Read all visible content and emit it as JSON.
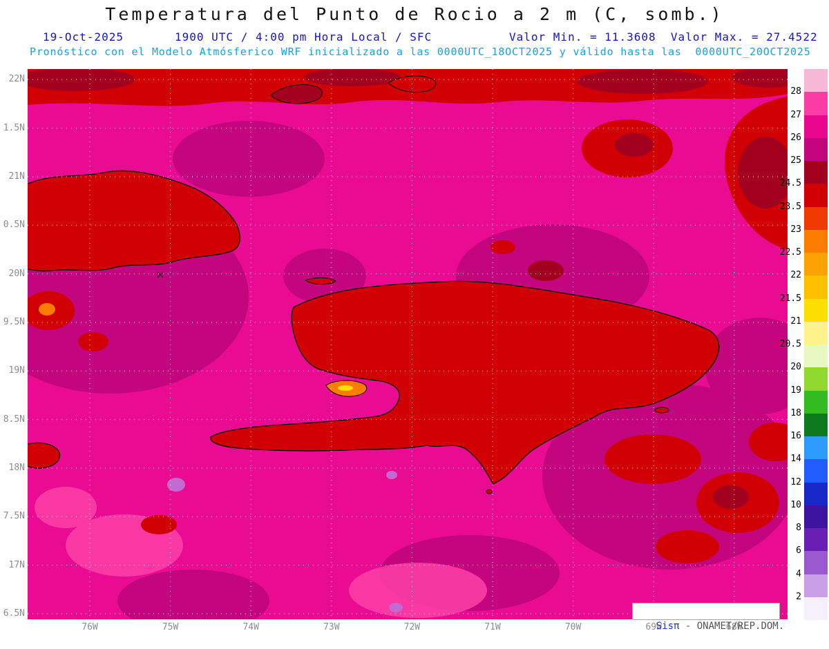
{
  "header": {
    "title": "Temperatura del Punto de Rocio a 2 m (C, somb.)",
    "date": "19-Oct-2025",
    "time": "1900 UTC / 4:00 pm Hora Local / SFC",
    "minmax": "Valor Min. = 11.3608  Valor Max. = 27.4522",
    "min_value": 11.3608,
    "max_value": 27.4522,
    "forecast_line": "Pronóstico con el Modelo Atmósferico WRF inicializado a las 0000UTC_18OCT2025 y válido hasta las  0000UTC_20OCT2025"
  },
  "axes": {
    "lat_labels": [
      "22N",
      "1.5N",
      "21N",
      "0.5N",
      "20N",
      "9.5N",
      "19N",
      "8.5N",
      "18N",
      "7.5N",
      "17N",
      "6.5N"
    ],
    "lon_labels": [
      "76W",
      "75W",
      "74W",
      "73W",
      "72W",
      "71W",
      "70W",
      "69W",
      "68W"
    ]
  },
  "colorbar": {
    "segments": [
      {
        "color": "#f8b8d8",
        "label": "28"
      },
      {
        "color": "#fb3da5",
        "label": "27"
      },
      {
        "color": "#e90790",
        "label": "26"
      },
      {
        "color": "#c4067e",
        "label": "25"
      },
      {
        "color": "#a30020",
        "label": "24.5"
      },
      {
        "color": "#d10005",
        "label": "23.5"
      },
      {
        "color": "#ef3b00",
        "label": "23"
      },
      {
        "color": "#fb7d00",
        "label": "22.5"
      },
      {
        "color": "#fca303",
        "label": "22"
      },
      {
        "color": "#fdc100",
        "label": "21.5"
      },
      {
        "color": "#fee000",
        "label": "21"
      },
      {
        "color": "#fdf38b",
        "label": "20.5"
      },
      {
        "color": "#e9f7c2",
        "label": "20"
      },
      {
        "color": "#8fd930",
        "label": "19"
      },
      {
        "color": "#33bb22",
        "label": "18"
      },
      {
        "color": "#0d7a20",
        "label": "16"
      },
      {
        "color": "#2e9bff",
        "label": "14"
      },
      {
        "color": "#1f5dff",
        "label": "12"
      },
      {
        "color": "#1929c8",
        "label": "10"
      },
      {
        "color": "#3c14a0",
        "label": "8"
      },
      {
        "color": "#6a1fb4",
        "label": "6"
      },
      {
        "color": "#9b59d0",
        "label": "4"
      },
      {
        "color": "#c9a0e8",
        "label": "2"
      },
      {
        "color": "#f6f0fc",
        "label": null
      }
    ]
  },
  "watermark": {
    "brand": "Sisπ",
    "rest": " - ONAMET/REP.DOM."
  },
  "colors": {
    "ocean_magenta": "#ea0b93",
    "header_blue": "#1414cc",
    "forecast_cyan": "#13a2e4",
    "axis_gray": "#8c8c8c"
  }
}
